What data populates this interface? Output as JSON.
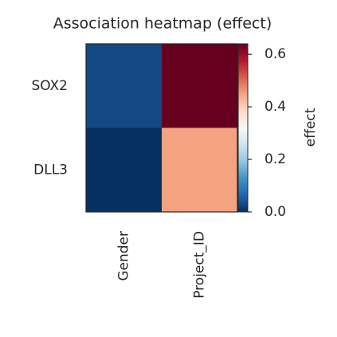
{
  "chart_data": {
    "type": "heatmap",
    "title": "Association heatmap (effect)",
    "rows": [
      "SOX2",
      "DLL3"
    ],
    "columns": [
      "Gender",
      "Project_ID"
    ],
    "values": [
      [
        0.03,
        0.64
      ],
      [
        0.0,
        0.45
      ]
    ],
    "colormap": "RdBu_r",
    "colorbar_label": "effect",
    "clim": [
      0,
      0.64
    ],
    "cticks": [
      {
        "value": 0,
        "label": "0.0"
      },
      0.2,
      0.4,
      0.6
    ]
  }
}
